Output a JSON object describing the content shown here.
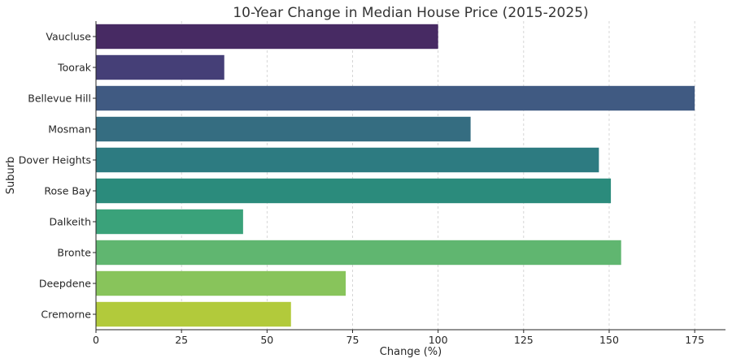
{
  "chart_data": {
    "type": "bar",
    "orientation": "horizontal",
    "title": "10-Year Change in Median House Price (2015-2025)",
    "xlabel": "Change (%)",
    "ylabel": "Suburb",
    "xlim": [
      0,
      184
    ],
    "xticks": [
      0,
      25,
      50,
      75,
      100,
      125,
      150,
      175
    ],
    "grid": "vertical dashed",
    "categories": [
      "Vaucluse",
      "Toorak",
      "Bellevue Hill",
      "Mosman",
      "Dover Heights",
      "Rose Bay",
      "Dalkeith",
      "Bronte",
      "Deepdene",
      "Cremorne"
    ],
    "values": [
      100,
      37.5,
      175,
      109.5,
      147,
      150.5,
      43,
      153.5,
      73,
      57
    ],
    "colors": [
      "#472a63",
      "#453f77",
      "#405a82",
      "#356d81",
      "#2d7b81",
      "#2b8b7c",
      "#3aa27a",
      "#60b670",
      "#88c45b",
      "#b2ca3b"
    ]
  }
}
